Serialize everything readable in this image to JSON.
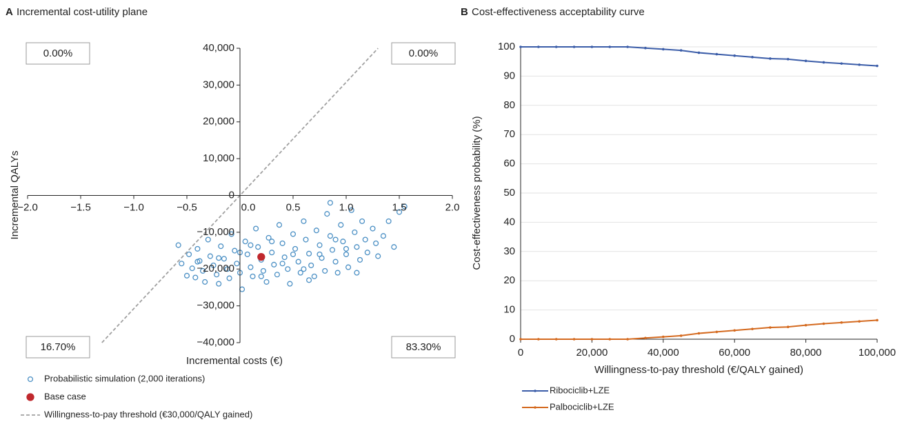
{
  "chart_data": [
    {
      "type": "scatter",
      "panel": "A",
      "title": "Incremental cost-utility plane",
      "xlabel": "Incremental costs (€)",
      "ylabel": "Incremental QALYs",
      "xlim": [
        -2,
        2
      ],
      "ylim": [
        -40000,
        40000
      ],
      "xticks": [
        {
          "value": -2,
          "label": "−2.0"
        },
        {
          "value": -1.5,
          "label": "−1.5"
        },
        {
          "value": -1,
          "label": "−1.0"
        },
        {
          "value": -0.5,
          "label": "−0.5"
        },
        {
          "value": 0,
          "label": "0.0"
        },
        0.5,
        {
          "value": 1,
          "label": "1.0"
        },
        {
          "value": 1.5,
          "label": "1.5"
        },
        {
          "value": 2,
          "label": "2.0"
        }
      ],
      "yticks": [
        {
          "value": -40000,
          "label": "−40,000"
        },
        {
          "value": -30000,
          "label": "−30,000"
        },
        {
          "value": -20000,
          "label": "−20,000"
        },
        {
          "value": -10000,
          "label": "−10,000"
        },
        0,
        {
          "value": 10000,
          "label": "10,000"
        },
        {
          "value": 20000,
          "label": "20,000"
        },
        {
          "value": 30000,
          "label": "30,000"
        },
        {
          "value": 40000,
          "label": "40,000"
        }
      ],
      "grid": false,
      "annotations": [
        "0.00%",
        "0.00%",
        "16.70%",
        "83.30%"
      ],
      "series": [
        {
          "name": "Probabilistic simulation (2,000 iterations)",
          "style": "open-circle",
          "color": "#4a8fc4",
          "x": [
            -0.58,
            -0.55,
            -0.5,
            -0.48,
            -0.45,
            -0.42,
            -0.4,
            -0.38,
            -0.35,
            -0.33,
            -0.3,
            -0.28,
            -0.25,
            -0.22,
            -0.2,
            -0.18,
            -0.15,
            -0.12,
            -0.1,
            -0.08,
            -0.05,
            -0.03,
            0,
            0.02,
            0.05,
            0.07,
            0.1,
            0.12,
            0.15,
            0.17,
            0.2,
            0.22,
            0.25,
            0.27,
            0.3,
            0.32,
            0.35,
            0.37,
            0.4,
            0.42,
            0.45,
            0.47,
            0.5,
            0.52,
            0.55,
            0.57,
            0.6,
            0.62,
            0.65,
            0.67,
            0.7,
            0.72,
            0.75,
            0.77,
            0.8,
            0.82,
            0.85,
            0.87,
            0.9,
            0.92,
            0.95,
            0.97,
            1.0,
            1.02,
            1.05,
            1.08,
            1.1,
            1.13,
            1.15,
            1.18,
            1.2,
            1.25,
            1.28,
            1.3,
            1.35,
            1.4,
            1.45,
            1.5,
            1.55,
            -0.2,
            0,
            0.1,
            0.3,
            0.5,
            0.6,
            0.75,
            0.9,
            1.0,
            0.2,
            0.4,
            -0.4,
            0.85,
            1.1,
            0.65
          ],
          "values": [
            -13500,
            -18500,
            -21800,
            -16000,
            -19800,
            -22300,
            -14500,
            -17800,
            -20500,
            -23500,
            -12000,
            -16500,
            -19000,
            -21500,
            -24000,
            -13800,
            -17200,
            -20000,
            -22500,
            -10500,
            -15000,
            -18500,
            -21000,
            -25500,
            -12500,
            -16000,
            -19500,
            -22000,
            -9000,
            -14000,
            -17500,
            -20500,
            -23500,
            -11500,
            -15500,
            -18800,
            -21500,
            -8000,
            -13000,
            -16800,
            -20000,
            -24000,
            -10500,
            -14500,
            -18000,
            -21000,
            -7000,
            -12000,
            -15800,
            -19000,
            -22000,
            -9500,
            -13500,
            -17000,
            -20500,
            -5000,
            -11000,
            -14800,
            -18000,
            -21000,
            -8000,
            -12500,
            -16000,
            -19500,
            -4000,
            -10000,
            -14000,
            -17500,
            -7000,
            -12000,
            -15500,
            -9000,
            -13000,
            -16500,
            -11000,
            -7000,
            -14000,
            -4500,
            -3000,
            -17000,
            -15500,
            -13500,
            -12500,
            -16000,
            -20000,
            -16000,
            -12000,
            -14500,
            -22000,
            -18500,
            -18000,
            -2000,
            -21000,
            -23000
          ]
        },
        {
          "name": "Base case",
          "style": "filled-circle",
          "color": "#c0282d",
          "x": [
            0.2
          ],
          "values": [
            -16700
          ]
        },
        {
          "name": "Willingness-to-pay threshold (€30,000/QALY gained)",
          "style": "dashed-line",
          "color": "#a0a0a0",
          "x": [
            -1.3,
            1.3
          ],
          "values": [
            -40000,
            40000
          ]
        }
      ]
    },
    {
      "type": "line",
      "panel": "B",
      "title": "Cost-effectiveness acceptability curve",
      "xlabel": "Willingness-to-pay threshold (€/QALY gained)",
      "ylabel": "Cost-effectiveness probability (%)",
      "xlim": [
        0,
        100000
      ],
      "ylim": [
        0,
        100
      ],
      "xticks": [
        0,
        {
          "value": 20000,
          "label": "20,000"
        },
        {
          "value": 40000,
          "label": "40,000"
        },
        {
          "value": 60000,
          "label": "60,000"
        },
        {
          "value": 80000,
          "label": "80,000"
        },
        {
          "value": 100000,
          "label": "100,000"
        }
      ],
      "yticks": [
        0,
        10,
        20,
        30,
        40,
        50,
        60,
        70,
        80,
        90,
        100
      ],
      "grid": true,
      "x": [
        0,
        5000,
        10000,
        15000,
        20000,
        25000,
        30000,
        35000,
        40000,
        45000,
        50000,
        55000,
        60000,
        65000,
        70000,
        75000,
        80000,
        85000,
        90000,
        95000,
        100000
      ],
      "series": [
        {
          "name": "Ribociclib+LZE",
          "color": "#3a5ca8",
          "values": [
            100,
            100,
            100,
            100,
            100,
            100,
            100,
            99.6,
            99.2,
            98.8,
            98,
            97.5,
            97,
            96.5,
            96,
            95.8,
            95.2,
            94.7,
            94.3,
            93.9,
            93.5
          ]
        },
        {
          "name": "Palbociclib+LZE",
          "color": "#d4691e",
          "values": [
            0,
            0,
            0,
            0,
            0,
            0,
            0,
            0.4,
            0.8,
            1.2,
            2,
            2.5,
            3,
            3.5,
            4,
            4.2,
            4.8,
            5.3,
            5.7,
            6.1,
            6.5
          ]
        }
      ]
    }
  ]
}
